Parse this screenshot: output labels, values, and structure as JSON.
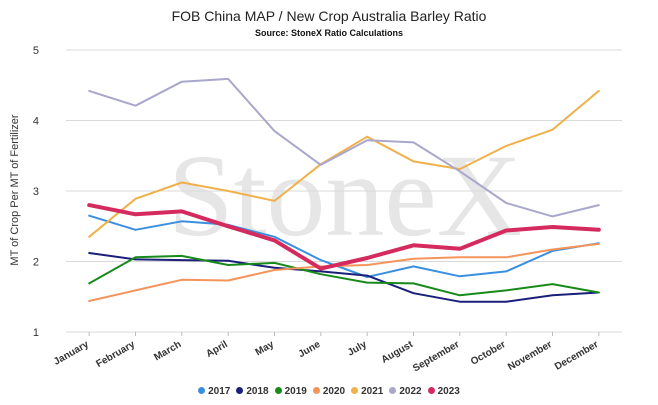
{
  "chart_data": {
    "type": "line",
    "title": "FOB China MAP / New Crop Australia Barley Ratio",
    "subtitle": "Source: StoneX Ratio Calculations",
    "ylabel": "MT of Crop Per MT of Fertilizer",
    "xlabel": "",
    "ylim": [
      1,
      5
    ],
    "yticks": [
      1,
      2,
      3,
      4,
      5
    ],
    "grid": true,
    "legend_position": "bottom",
    "watermark": "StoneX",
    "categories": [
      "January",
      "February",
      "March",
      "April",
      "May",
      "June",
      "July",
      "August",
      "September",
      "October",
      "November",
      "December"
    ],
    "series": [
      {
        "name": "2017",
        "color": "#3b8fe0",
        "width": 2,
        "values": [
          2.65,
          2.45,
          2.57,
          2.52,
          2.35,
          2.02,
          1.78,
          1.93,
          1.79,
          1.86,
          2.15,
          2.26
        ]
      },
      {
        "name": "2018",
        "color": "#1a1f7a",
        "width": 2,
        "values": [
          2.12,
          2.03,
          2.02,
          2.01,
          1.91,
          1.86,
          1.8,
          1.55,
          1.43,
          1.43,
          1.52,
          1.56
        ]
      },
      {
        "name": "2019",
        "color": "#178a1a",
        "width": 2,
        "values": [
          1.69,
          2.06,
          2.08,
          1.95,
          1.98,
          1.82,
          1.7,
          1.69,
          1.52,
          1.59,
          1.68,
          1.56
        ]
      },
      {
        "name": "2020",
        "color": "#f5945a",
        "width": 2,
        "values": [
          1.44,
          1.59,
          1.74,
          1.73,
          1.88,
          1.93,
          1.95,
          2.04,
          2.06,
          2.06,
          2.17,
          2.25
        ]
      },
      {
        "name": "2021",
        "color": "#f0b04a",
        "width": 2,
        "values": [
          2.35,
          2.89,
          3.12,
          3.0,
          2.86,
          3.38,
          3.77,
          3.42,
          3.31,
          3.64,
          3.87,
          4.42
        ]
      },
      {
        "name": "2022",
        "color": "#a9a7cc",
        "width": 2,
        "values": [
          4.42,
          4.21,
          4.55,
          4.59,
          3.85,
          3.37,
          3.72,
          3.69,
          3.28,
          2.83,
          2.64,
          2.8
        ]
      },
      {
        "name": "2023",
        "color": "#d42a5e",
        "width": 4,
        "values": [
          2.8,
          2.67,
          2.71,
          2.5,
          2.3,
          1.9,
          2.05,
          2.23,
          2.18,
          2.44,
          2.49,
          2.45
        ]
      }
    ]
  }
}
